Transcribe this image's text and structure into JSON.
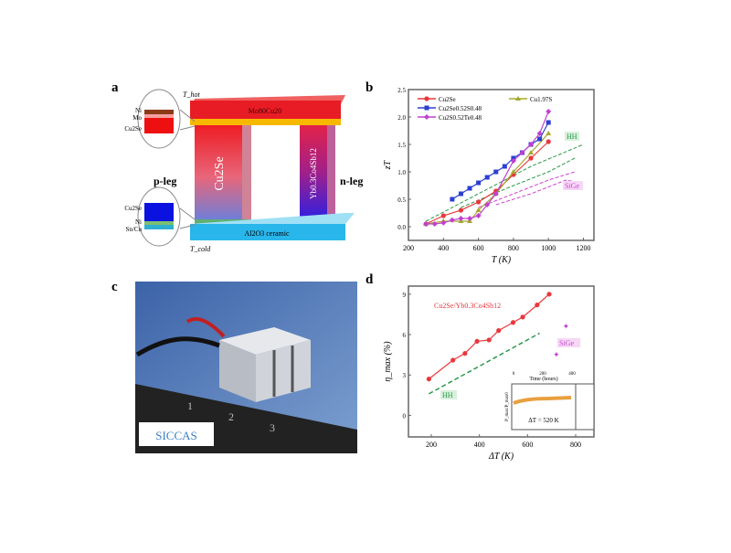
{
  "panels": {
    "a": {
      "label": "a",
      "t_hot": "T_hot",
      "top_electrode": "Mo80Cu20",
      "p_leg": "p-leg",
      "n_leg": "n-leg",
      "p_material": "Cu2Se",
      "n_material": "Yb0.3Co4Sb12",
      "ceramic": "Al2O3 ceramic",
      "t_cold": "T_cold",
      "top_inset_layers": [
        "Ni",
        "Mo",
        "Cu2Se"
      ],
      "bottom_inset_layers": [
        "Cu2Se",
        "Ni",
        "Sn/Cu"
      ]
    },
    "c": {
      "label": "c",
      "logo": "SICCAS",
      "ruler_marks": [
        "1",
        "2",
        "3"
      ]
    }
  },
  "chart_data": [
    {
      "panel": "b",
      "type": "line",
      "xlabel": "T (K)",
      "ylabel": "zT",
      "xlim": [
        200,
        1260
      ],
      "ylim": [
        -0.25,
        2.5
      ],
      "xticks": [
        200,
        400,
        600,
        800,
        1000,
        1200
      ],
      "yticks": [
        0.0,
        0.5,
        1.0,
        1.5,
        2.0,
        2.5
      ],
      "legend_position": "top-left",
      "series": [
        {
          "name": "Cu2Se",
          "color": "#e8383d",
          "marker": "circle",
          "x": [
            300,
            400,
            500,
            600,
            700,
            800,
            900,
            1000
          ],
          "y": [
            0.05,
            0.2,
            0.3,
            0.45,
            0.65,
            0.95,
            1.25,
            1.55
          ]
        },
        {
          "name": "Cu1.97S",
          "color": "#a5a82a",
          "marker": "triangle",
          "x": [
            300,
            400,
            500,
            550,
            600,
            700,
            800,
            900,
            1000
          ],
          "y": [
            0.05,
            0.1,
            0.1,
            0.1,
            0.3,
            0.6,
            1.0,
            1.35,
            1.7
          ]
        },
        {
          "name": "Cu2Se0.52S0.48",
          "color": "#2b3fd0",
          "marker": "square",
          "x": [
            450,
            500,
            550,
            600,
            650,
            700,
            750,
            800,
            850,
            900,
            950,
            1000
          ],
          "y": [
            0.5,
            0.6,
            0.7,
            0.8,
            0.9,
            1.0,
            1.1,
            1.25,
            1.35,
            1.5,
            1.6,
            1.9
          ]
        },
        {
          "name": "Cu2S0.52Te0.48",
          "color": "#c040d0",
          "marker": "diamond",
          "x": [
            300,
            350,
            400,
            450,
            500,
            550,
            600,
            650,
            700,
            800,
            850,
            900,
            950,
            1000
          ],
          "y": [
            0.05,
            0.05,
            0.07,
            0.12,
            0.15,
            0.15,
            0.2,
            0.4,
            0.6,
            1.2,
            1.35,
            1.5,
            1.7,
            2.1
          ]
        }
      ],
      "reference_curves": [
        {
          "label": "HH",
          "color": "#2a9a4a",
          "curves": [
            {
              "x": [
                300,
                600,
                900,
                1200
              ],
              "y": [
                0.1,
                0.6,
                1.1,
                1.5
              ]
            },
            {
              "x": [
                500,
                800,
                1000,
                1150
              ],
              "y": [
                0.35,
                0.75,
                1.0,
                1.25
              ]
            }
          ]
        },
        {
          "label": "SiGe",
          "color": "#d040d0",
          "curves": [
            {
              "x": [
                600,
                800,
                1000,
                1150
              ],
              "y": [
                0.35,
                0.6,
                0.85,
                1.0
              ]
            },
            {
              "x": [
                700,
                900,
                1100,
                1180
              ],
              "y": [
                0.4,
                0.6,
                0.85,
                0.8
              ]
            }
          ]
        }
      ]
    },
    {
      "panel": "d",
      "type": "line",
      "xlabel": "ΔT (K)",
      "ylabel": "η_max (%)",
      "xlim": [
        105,
        876
      ],
      "ylim": [
        -1.6,
        9.6
      ],
      "xticks": [
        200,
        400,
        600,
        800
      ],
      "yticks": [
        0,
        3,
        6,
        9
      ],
      "series": [
        {
          "name": "Cu2Se/Yb0.3Co4Sb12",
          "color": "#e8383d",
          "marker": "circle",
          "x": [
            190,
            290,
            340,
            390,
            440,
            480,
            540,
            580,
            640,
            690
          ],
          "y": [
            2.7,
            4.1,
            4.6,
            5.5,
            5.6,
            6.3,
            6.9,
            7.3,
            8.2,
            9.0
          ]
        },
        {
          "name": "HH",
          "color": "#2a9a4a",
          "marker": "none",
          "dashed": true,
          "x": [
            190,
            650
          ],
          "y": [
            1.6,
            6.1
          ]
        },
        {
          "name": "SiGe",
          "color": "#c040d0",
          "marker": "star",
          "line": false,
          "x": [
            720,
            760
          ],
          "y": [
            4.5,
            6.6
          ]
        }
      ],
      "inset": {
        "xlabel": "Time (hours)",
        "xticks": [
          "0",
          "200",
          "400"
        ],
        "ylabel": "P_max/P_max0",
        "annotation": "ΔT = 520 K",
        "color": "#e8a040"
      }
    }
  ]
}
